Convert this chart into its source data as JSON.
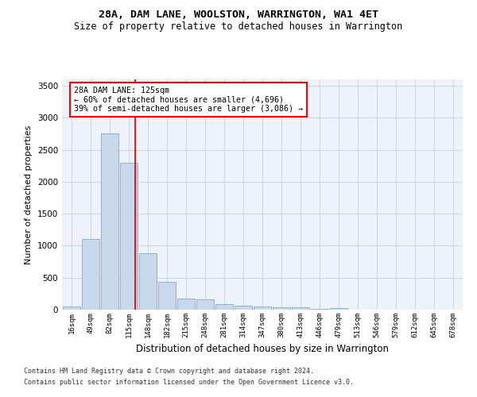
{
  "title": "28A, DAM LANE, WOOLSTON, WARRINGTON, WA1 4ET",
  "subtitle": "Size of property relative to detached houses in Warrington",
  "xlabel": "Distribution of detached houses by size in Warrington",
  "ylabel": "Number of detached properties",
  "bar_color": "#c8d9ee",
  "bar_edge_color": "#7aadd4",
  "bar_categories": [
    "16sqm",
    "49sqm",
    "82sqm",
    "115sqm",
    "148sqm",
    "182sqm",
    "215sqm",
    "248sqm",
    "281sqm",
    "314sqm",
    "347sqm",
    "380sqm",
    "413sqm",
    "446sqm",
    "479sqm",
    "513sqm",
    "546sqm",
    "579sqm",
    "612sqm",
    "645sqm",
    "678sqm"
  ],
  "bar_values": [
    50,
    1100,
    2750,
    2300,
    880,
    430,
    175,
    165,
    90,
    65,
    55,
    40,
    35,
    18,
    20,
    5,
    5,
    2,
    1,
    1,
    1
  ],
  "ylim": [
    0,
    3600
  ],
  "yticks": [
    0,
    500,
    1000,
    1500,
    2000,
    2500,
    3000,
    3500
  ],
  "red_line_x": 3.35,
  "annotation_title": "28A DAM LANE: 125sqm",
  "annotation_line1": "← 60% of detached houses are smaller (4,696)",
  "annotation_line2": "39% of semi-detached houses are larger (3,086) →",
  "bg_color": "#eef2fa",
  "grid_color": "#d0d8e8",
  "footnote1": "Contains HM Land Registry data © Crown copyright and database right 2024.",
  "footnote2": "Contains public sector information licensed under the Open Government Licence v3.0."
}
